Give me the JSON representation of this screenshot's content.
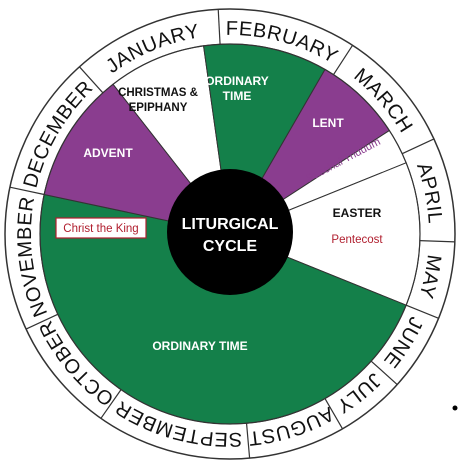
{
  "center": [
    "LITURGICAL",
    "CYCLE"
  ],
  "months": [
    "JANUARY",
    "FEBRUARY",
    "MARCH",
    "APRIL",
    "MAY",
    "JUNE",
    "JULY",
    "AUGUST",
    "SEPTEMBER",
    "OCTOBER",
    "NOVEMBER",
    "DECEMBER"
  ],
  "seasons": [
    {
      "label": [
        "CHRISTMAS &",
        "EPIPHANY"
      ],
      "color": "#ffffff"
    },
    {
      "label": [
        "ORDINARY",
        "TIME"
      ],
      "color": "#14804a"
    },
    {
      "label": [
        "LENT"
      ],
      "color": "#8a3d8f"
    },
    {
      "label": [
        "Paschal Triduum"
      ],
      "color": "#ffffff"
    },
    {
      "label": [
        "EASTER"
      ],
      "color": "#ffffff",
      "note": "Pentecost"
    },
    {
      "label": [
        "ORDINARY TIME"
      ],
      "color": "#14804a"
    },
    {
      "label": [
        "ADVENT"
      ],
      "color": "#8a3d8f"
    }
  ],
  "feast": "Christ the King"
}
